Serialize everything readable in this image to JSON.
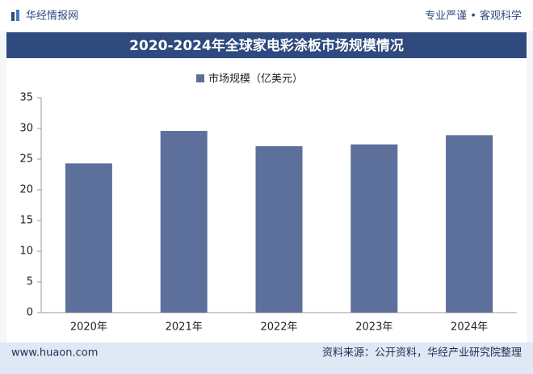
{
  "header": {
    "logo": "华经情报网",
    "slogan": "专业严谨 • 客观科学"
  },
  "chart_data": {
    "type": "bar",
    "title": "2020-2024年全球家电彩涂板市场规模情况",
    "categories": [
      "2020年",
      "2021年",
      "2022年",
      "2023年",
      "2024年"
    ],
    "series": [
      {
        "name": "市场规模（亿美元）",
        "color": "#5d6f9b",
        "values": [
          24.3,
          29.6,
          27.1,
          27.4,
          28.9
        ]
      }
    ],
    "ylim": [
      0,
      35
    ],
    "yticks": [
      0,
      5,
      10,
      15,
      20,
      25,
      30,
      35
    ],
    "grid": false
  },
  "footer": {
    "url": "www.huaon.com",
    "source": "资料来源：公开资料，华经产业研究院整理"
  }
}
